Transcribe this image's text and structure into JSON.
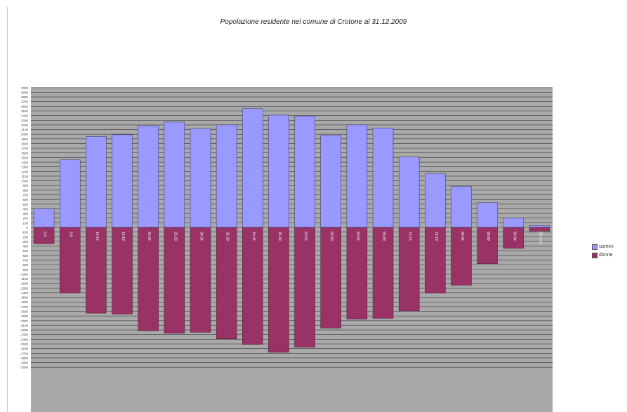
{
  "chart_data": {
    "type": "bar",
    "stacked_diverging": true,
    "title": "Popolazione residente nel comune di Crotone al 31.12.2009",
    "categories": [
      "0-4",
      "5-9",
      "10-14",
      "15-19",
      "20-24",
      "25-29",
      "30-34",
      "35-39",
      "40-44",
      "45-49",
      "50-54",
      "55-59",
      "60-64",
      "65-69",
      "70-74",
      "75-79",
      "80-84",
      "85-89",
      "90-94",
      "95 e più"
    ],
    "series": [
      {
        "name": "uomini",
        "color": "#9999ff",
        "values": [
          400,
          1450,
          1950,
          1990,
          2180,
          2260,
          2120,
          2200,
          2550,
          2410,
          2390,
          1980,
          2200,
          2130,
          1510,
          1150,
          880,
          530,
          200,
          40
        ]
      },
      {
        "name": "donne",
        "color": "#993366",
        "values": [
          -350,
          -1410,
          -1840,
          -1860,
          -2220,
          -2270,
          -2250,
          -2390,
          -2510,
          -2680,
          -2570,
          -2160,
          -1970,
          -1950,
          -1790,
          -1410,
          -1240,
          -780,
          -450,
          -80
        ]
      }
    ],
    "yaxis": {
      "min": -3000,
      "max": 3000,
      "step": 100,
      "label_step": 100
    },
    "grid": true,
    "legend": "right",
    "plot_background": "#a9a9a9"
  }
}
